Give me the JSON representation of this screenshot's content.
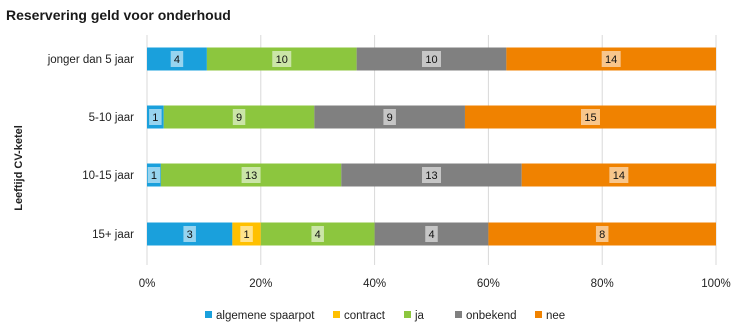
{
  "chart_data": {
    "type": "bar",
    "orientation": "horizontal",
    "stacked": "percent",
    "title": "Reservering geld voor onderhoud",
    "ylabel": "Leeftijd CV-ketel",
    "xlabel": "",
    "categories": [
      "jonger dan 5 jaar",
      "5-10 jaar",
      "10-15 jaar",
      "15+ jaar"
    ],
    "series": [
      {
        "name": "algemene spaarpot",
        "color": "#1aa0dc",
        "values": [
          4,
          1,
          1,
          3
        ]
      },
      {
        "name": "contract",
        "color": "#ffc000",
        "values": [
          0,
          0,
          0,
          1
        ]
      },
      {
        "name": "ja",
        "color": "#8cc63e",
        "values": [
          10,
          9,
          13,
          4
        ]
      },
      {
        "name": "onbekend",
        "color": "#808080",
        "values": [
          10,
          9,
          13,
          4
        ]
      },
      {
        "name": "nee",
        "color": "#f08200",
        "values": [
          14,
          15,
          14,
          8
        ]
      }
    ],
    "xlim": [
      0,
      100
    ],
    "xticks": [
      "0%",
      "20%",
      "40%",
      "60%",
      "80%",
      "100%"
    ],
    "grid": "vertical",
    "legend_position": "bottom"
  }
}
